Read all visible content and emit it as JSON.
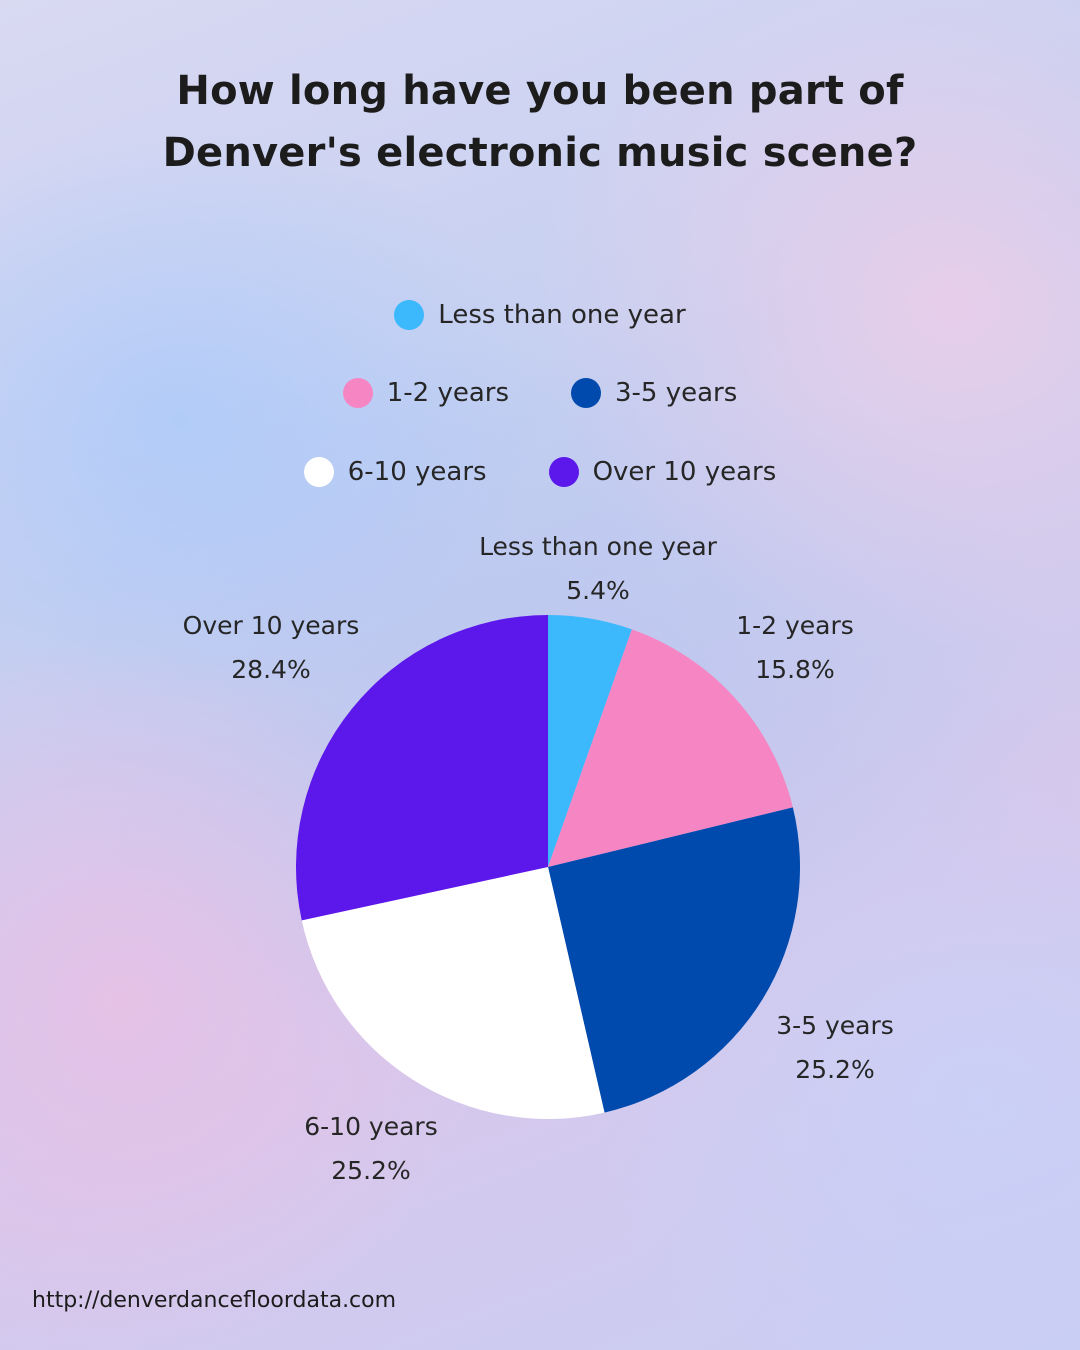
{
  "title": {
    "line1": "How long have you been part of",
    "line2": "Denver's electronic music scene?"
  },
  "legend": [
    {
      "label": "Less than one year",
      "color": "#3cb8fc"
    },
    {
      "label": "1-2 years",
      "color": "#f586c3"
    },
    {
      "label": "3-5 years",
      "color": "#004aad"
    },
    {
      "label": "6-10 years",
      "color": "#ffffff"
    },
    {
      "label": "Over 10 years",
      "color": "#5c17eb"
    }
  ],
  "chart_data": {
    "type": "pie",
    "categories": [
      "Less than one year",
      "1-2 years",
      "3-5 years",
      "6-10 years",
      "Over 10 years"
    ],
    "values": [
      5.4,
      15.8,
      25.2,
      25.2,
      28.4
    ],
    "value_labels": [
      "5.4%",
      "15.8%",
      "25.2%",
      "25.2%",
      "28.4%"
    ],
    "colors": [
      "#3cb8fc",
      "#f586c3",
      "#004aad",
      "#ffffff",
      "#5c17eb"
    ],
    "start_angle": "12 o'clock",
    "direction": "clockwise",
    "legend_position": "top"
  },
  "footer": "http://denverdancefloordata.com"
}
